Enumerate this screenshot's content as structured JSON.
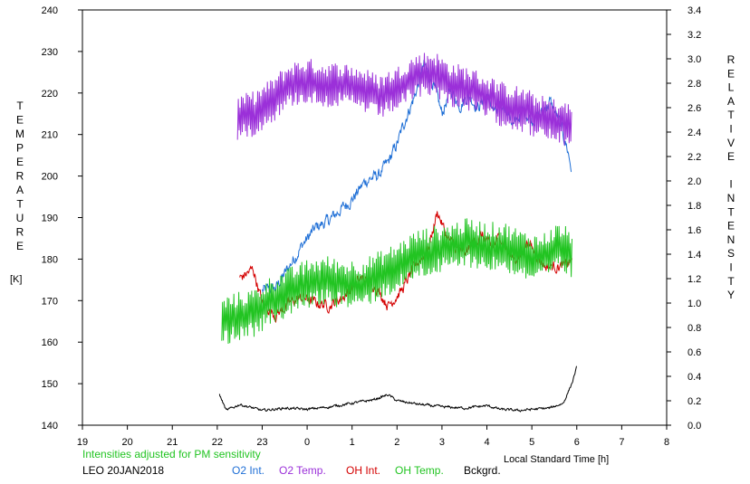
{
  "chart_data": {
    "type": "line",
    "left_axis_label": "TEMPERATURE",
    "left_axis_unit": "[K]",
    "right_axis_label": "RELATIVE INTENSITY",
    "xlabel": "Local Standard Time [h]",
    "x_ticks": [
      "19",
      "20",
      "21",
      "22",
      "23",
      "0",
      "1",
      "2",
      "3",
      "4",
      "5",
      "6",
      "7",
      "8"
    ],
    "ylim_left": [
      140,
      240
    ],
    "ylim_right": [
      0.0,
      3.4
    ],
    "y_ticks_left": [
      "140",
      "150",
      "160",
      "170",
      "180",
      "190",
      "200",
      "210",
      "220",
      "230",
      "240"
    ],
    "y_ticks_right": [
      "0.0",
      "0.2",
      "0.4",
      "0.6",
      "0.8",
      "1.0",
      "1.2",
      "1.4",
      "1.6",
      "1.8",
      "2.0",
      "2.2",
      "2.4",
      "2.6",
      "2.8",
      "3.0",
      "3.2",
      "3.4"
    ],
    "annotation": "Intensities adjusted for PM sensitivity",
    "station": "LEO 20JAN2018",
    "grid": false,
    "series": [
      {
        "name": "O2 Int.",
        "color": "#1f6fd6",
        "axis": "right",
        "kind": "smooth",
        "noise": 0.04,
        "points": [
          [
            23.0,
            1.1
          ],
          [
            23.3,
            1.12
          ],
          [
            23.6,
            1.3
          ],
          [
            23.9,
            1.48
          ],
          [
            24.2,
            1.62
          ],
          [
            24.5,
            1.68
          ],
          [
            24.7,
            1.75
          ],
          [
            25.0,
            1.85
          ],
          [
            25.3,
            2.0
          ],
          [
            25.6,
            2.05
          ],
          [
            25.8,
            2.15
          ],
          [
            26.0,
            2.3
          ],
          [
            26.2,
            2.52
          ],
          [
            26.4,
            2.7
          ],
          [
            26.6,
            2.95
          ],
          [
            26.8,
            2.8
          ],
          [
            27.0,
            2.55
          ],
          [
            27.2,
            2.75
          ],
          [
            27.4,
            2.62
          ],
          [
            27.6,
            2.7
          ],
          [
            27.8,
            2.6
          ],
          [
            28.0,
            2.7
          ],
          [
            28.2,
            2.55
          ],
          [
            28.4,
            2.62
          ],
          [
            28.6,
            2.45
          ],
          [
            28.8,
            2.58
          ],
          [
            29.0,
            2.5
          ],
          [
            29.2,
            2.55
          ],
          [
            29.4,
            2.65
          ],
          [
            29.6,
            2.5
          ],
          [
            29.8,
            2.25
          ],
          [
            29.88,
            2.1
          ]
        ]
      },
      {
        "name": "O2 Temp.",
        "color": "#9b30d9",
        "axis": "left",
        "kind": "noisy",
        "noise": 5.5,
        "points": [
          [
            22.45,
            214
          ],
          [
            22.8,
            215
          ],
          [
            23.2,
            218
          ],
          [
            23.6,
            222
          ],
          [
            24.0,
            223
          ],
          [
            24.4,
            222
          ],
          [
            24.8,
            222
          ],
          [
            25.2,
            221
          ],
          [
            25.6,
            219
          ],
          [
            26.0,
            221
          ],
          [
            26.4,
            224
          ],
          [
            26.8,
            225
          ],
          [
            27.2,
            222
          ],
          [
            27.6,
            221
          ],
          [
            28.0,
            219
          ],
          [
            28.4,
            217
          ],
          [
            28.8,
            216
          ],
          [
            29.2,
            214
          ],
          [
            29.6,
            213
          ],
          [
            29.9,
            212
          ]
        ]
      },
      {
        "name": "OH Int.",
        "color": "#d40000",
        "axis": "right",
        "kind": "smooth",
        "noise": 0.035,
        "points": [
          [
            22.5,
            1.2
          ],
          [
            22.8,
            1.28
          ],
          [
            23.0,
            1.0
          ],
          [
            23.3,
            0.9
          ],
          [
            23.6,
            1.0
          ],
          [
            23.9,
            1.05
          ],
          [
            24.2,
            1.0
          ],
          [
            24.5,
            0.98
          ],
          [
            24.8,
            1.05
          ],
          [
            25.2,
            1.2
          ],
          [
            25.5,
            1.15
          ],
          [
            25.8,
            0.98
          ],
          [
            26.1,
            1.1
          ],
          [
            26.4,
            1.3
          ],
          [
            26.7,
            1.45
          ],
          [
            26.9,
            1.75
          ],
          [
            27.1,
            1.55
          ],
          [
            27.3,
            1.45
          ],
          [
            27.5,
            1.4
          ],
          [
            27.7,
            1.5
          ],
          [
            27.9,
            1.55
          ],
          [
            28.1,
            1.45
          ],
          [
            28.3,
            1.55
          ],
          [
            28.5,
            1.4
          ],
          [
            28.7,
            1.35
          ],
          [
            28.9,
            1.5
          ],
          [
            29.1,
            1.4
          ],
          [
            29.3,
            1.3
          ],
          [
            29.5,
            1.3
          ],
          [
            29.7,
            1.3
          ],
          [
            29.9,
            1.35
          ]
        ]
      },
      {
        "name": "OH Temp.",
        "color": "#22c422",
        "axis": "left",
        "kind": "noisy",
        "noise": 6,
        "points": [
          [
            22.1,
            165
          ],
          [
            22.4,
            166
          ],
          [
            22.8,
            167
          ],
          [
            23.2,
            170
          ],
          [
            23.6,
            172
          ],
          [
            24.0,
            174
          ],
          [
            24.4,
            175
          ],
          [
            24.8,
            174
          ],
          [
            25.2,
            174
          ],
          [
            25.6,
            176
          ],
          [
            26.0,
            178
          ],
          [
            26.4,
            181
          ],
          [
            26.8,
            182
          ],
          [
            27.2,
            183
          ],
          [
            27.6,
            184
          ],
          [
            28.0,
            183
          ],
          [
            28.4,
            183
          ],
          [
            28.8,
            181
          ],
          [
            29.2,
            180
          ],
          [
            29.6,
            183
          ],
          [
            29.9,
            181
          ]
        ]
      },
      {
        "name": "Bckgrd.",
        "color": "#000000",
        "axis": "right",
        "kind": "smooth",
        "noise": 0.008,
        "points": [
          [
            22.05,
            0.25
          ],
          [
            22.2,
            0.12
          ],
          [
            22.5,
            0.17
          ],
          [
            23.0,
            0.12
          ],
          [
            23.5,
            0.14
          ],
          [
            24.0,
            0.13
          ],
          [
            24.5,
            0.15
          ],
          [
            25.0,
            0.18
          ],
          [
            25.5,
            0.21
          ],
          [
            25.8,
            0.25
          ],
          [
            26.0,
            0.2
          ],
          [
            26.5,
            0.17
          ],
          [
            27.0,
            0.15
          ],
          [
            27.5,
            0.14
          ],
          [
            28.0,
            0.16
          ],
          [
            28.3,
            0.13
          ],
          [
            28.7,
            0.12
          ],
          [
            29.0,
            0.13
          ],
          [
            29.4,
            0.14
          ],
          [
            29.7,
            0.18
          ],
          [
            29.9,
            0.35
          ],
          [
            30.0,
            0.48
          ]
        ]
      }
    ]
  }
}
